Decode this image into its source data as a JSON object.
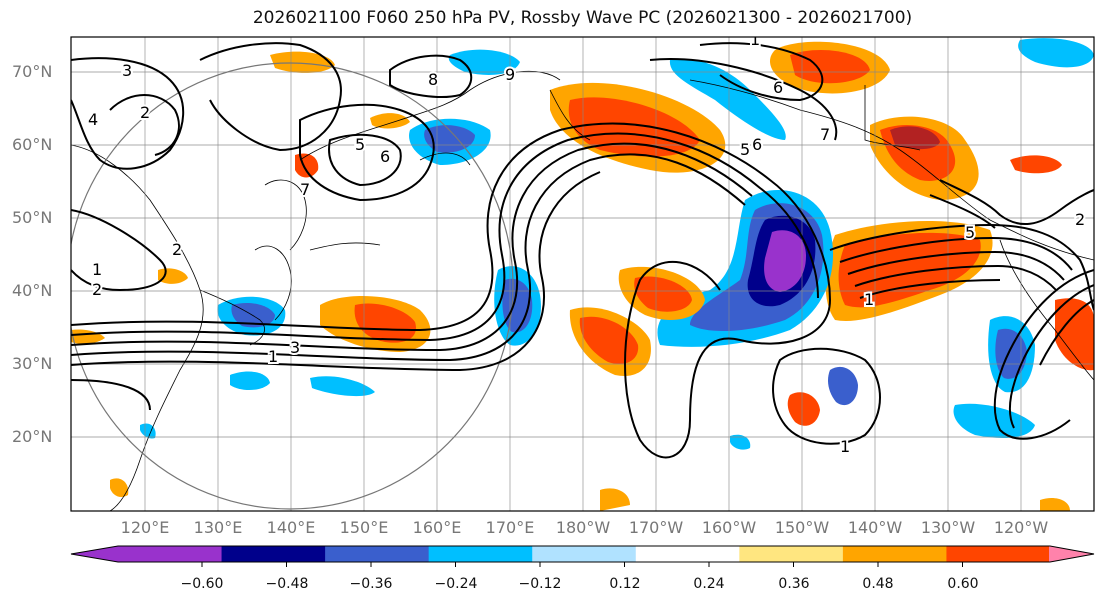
{
  "title": "2026021100 F060 250 hPa PV, Rossby Wave PC (2026021300 - 2026021700)",
  "map": {
    "lat_labels": [
      "70°N",
      "60°N",
      "50°N",
      "40°N",
      "30°N",
      "20°N"
    ],
    "lon_labels": [
      "120°E",
      "130°E",
      "140°E",
      "150°E",
      "160°E",
      "170°E",
      "180°W",
      "170°W",
      "160°W",
      "150°W",
      "140°W",
      "130°W",
      "120°W"
    ],
    "contour_labels": [
      "3",
      "2",
      "4",
      "5",
      "6",
      "7",
      "8",
      "9",
      "2",
      "1",
      "2",
      "3",
      "1",
      "5",
      "6",
      "7",
      "1",
      "6",
      "1",
      "2",
      "5",
      "1"
    ]
  },
  "colorbar": {
    "ticks": [
      "−0.60",
      "−0.48",
      "−0.36",
      "−0.24",
      "−0.12",
      "0.12",
      "0.24",
      "0.36",
      "0.48",
      "0.60"
    ],
    "colors": [
      "#9932CC",
      "#00008B",
      "#3A5FCD",
      "#00BFFF",
      "#B0E2FF",
      "#FFFFFF",
      "#FFE680",
      "#FFA500",
      "#FF4500",
      "#B22222",
      "#FF82AB"
    ]
  }
}
